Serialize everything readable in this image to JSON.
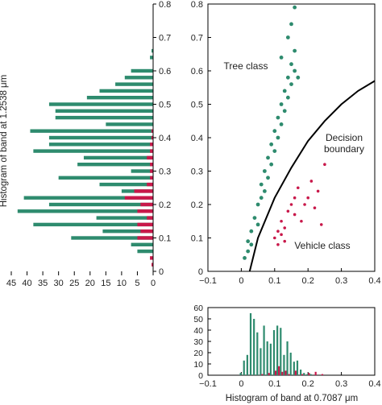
{
  "colors": {
    "tree": "#2e8b6e",
    "vehicle": "#c8184a",
    "boundary": "#000000"
  },
  "chart_data": [
    {
      "type": "bar",
      "orientation": "horizontal",
      "ylabel": "Histogram of band at 1.2538 μm",
      "ylim": [
        0,
        0.8
      ],
      "xlim": [
        45,
        0
      ],
      "xticks": [
        "45",
        "40",
        "35",
        "30",
        "25",
        "20",
        "15",
        "10",
        "5",
        "0"
      ],
      "yticks": [
        "0",
        "0.1",
        "0.2",
        "0.3",
        "0.4",
        "0.5",
        "0.6",
        "0.7",
        "0.8"
      ],
      "grid": false,
      "series": [
        {
          "color": "tree",
          "y": [
            0.06,
            0.08,
            0.1,
            0.12,
            0.14,
            0.16,
            0.18,
            0.2,
            0.22,
            0.24,
            0.26,
            0.28,
            0.3,
            0.32,
            0.34,
            0.36,
            0.38,
            0.4,
            0.42,
            0.44,
            0.46,
            0.48,
            0.5,
            0.52,
            0.54,
            0.56,
            0.58,
            0.6,
            0.62,
            0.64,
            0.66
          ],
          "values": [
            5,
            7,
            26,
            16,
            38,
            18,
            43,
            33,
            41,
            10,
            17,
            30,
            7,
            24,
            22,
            38,
            33,
            33,
            39,
            15,
            31,
            31,
            33,
            21,
            17,
            12,
            9,
            7,
            0,
            1,
            0.5
          ]
        },
        {
          "color": "vehicle",
          "y": [
            0.02,
            0.04,
            0.06,
            0.08,
            0.1,
            0.12,
            0.14,
            0.16,
            0.18,
            0.2,
            0.22,
            0.24,
            0.26,
            0.28,
            0.3,
            0.32,
            0.34,
            0.36,
            0.38,
            0.4,
            0.42
          ],
          "values": [
            0.5,
            1,
            0,
            0,
            5,
            4,
            5,
            2,
            5,
            4,
            9,
            6,
            2,
            1,
            1,
            1,
            2,
            1,
            1,
            0.5,
            0.5
          ]
        }
      ]
    },
    {
      "type": "scatter",
      "xlim": [
        -0.1,
        0.4
      ],
      "ylim": [
        0,
        0.8
      ],
      "xticks": [
        "−0.1",
        "0",
        "0.1",
        "0.2",
        "0.3",
        "0.4"
      ],
      "yticks": [
        "0",
        "0.1",
        "0.2",
        "0.3",
        "0.4",
        "0.5",
        "0.6",
        "0.7",
        "0.8"
      ],
      "grid": false,
      "annotations": [
        "Tree class",
        "Decision",
        "boundary",
        "Vehicle class"
      ],
      "series": [
        {
          "name": "Tree class",
          "color": "tree",
          "points": [
            [
              0.01,
              0.04
            ],
            [
              0.02,
              0.06
            ],
            [
              0.02,
              0.09
            ],
            [
              0.03,
              0.08
            ],
            [
              0.03,
              0.12
            ],
            [
              0.04,
              0.16
            ],
            [
              0.05,
              0.14
            ],
            [
              0.05,
              0.2
            ],
            [
              0.06,
              0.22
            ],
            [
              0.06,
              0.26
            ],
            [
              0.07,
              0.24
            ],
            [
              0.07,
              0.3
            ],
            [
              0.08,
              0.28
            ],
            [
              0.08,
              0.34
            ],
            [
              0.09,
              0.32
            ],
            [
              0.09,
              0.38
            ],
            [
              0.1,
              0.36
            ],
            [
              0.1,
              0.42
            ],
            [
              0.11,
              0.4
            ],
            [
              0.11,
              0.46
            ],
            [
              0.12,
              0.44
            ],
            [
              0.12,
              0.5
            ],
            [
              0.13,
              0.48
            ],
            [
              0.13,
              0.54
            ],
            [
              0.14,
              0.52
            ],
            [
              0.14,
              0.58
            ],
            [
              0.15,
              0.56
            ],
            [
              0.15,
              0.62
            ],
            [
              0.16,
              0.6
            ],
            [
              0.16,
              0.66
            ],
            [
              0.17,
              0.58
            ],
            [
              0.12,
              0.64
            ],
            [
              0.14,
              0.7
            ],
            [
              0.15,
              0.74
            ],
            [
              0.16,
              0.79
            ]
          ]
        },
        {
          "name": "Vehicle class",
          "color": "vehicle",
          "points": [
            [
              0.1,
              0.1
            ],
            [
              0.11,
              0.12
            ],
            [
              0.12,
              0.15
            ],
            [
              0.13,
              0.13
            ],
            [
              0.12,
              0.11
            ],
            [
              0.14,
              0.18
            ],
            [
              0.15,
              0.2
            ],
            [
              0.16,
              0.22
            ],
            [
              0.17,
              0.25
            ],
            [
              0.16,
              0.17
            ],
            [
              0.18,
              0.15
            ],
            [
              0.19,
              0.2
            ],
            [
              0.2,
              0.22
            ],
            [
              0.21,
              0.27
            ],
            [
              0.22,
              0.19
            ],
            [
              0.23,
              0.24
            ],
            [
              0.25,
              0.32
            ],
            [
              0.24,
              0.14
            ],
            [
              0.13,
              0.09
            ],
            [
              0.11,
              0.08
            ]
          ]
        },
        {
          "name": "Decision boundary",
          "type": "line",
          "color": "boundary",
          "x": [
            0.025,
            0.05,
            0.1,
            0.15,
            0.2,
            0.25,
            0.3,
            0.35,
            0.4
          ],
          "y": [
            0.0,
            0.1,
            0.22,
            0.31,
            0.39,
            0.45,
            0.5,
            0.54,
            0.57
          ]
        }
      ]
    },
    {
      "type": "bar",
      "xlabel": "Histogram of band at 0.7087 μm",
      "xlim": [
        -0.1,
        0.4
      ],
      "ylim": [
        0,
        60
      ],
      "xticks": [
        "−0.1",
        "0",
        "0.1",
        "0.2",
        "0.3",
        "0.4"
      ],
      "yticks": [
        "0",
        "10",
        "20",
        "30",
        "40",
        "50",
        "60"
      ],
      "grid": false,
      "series": [
        {
          "color": "tree",
          "x": [
            0.0,
            0.01,
            0.02,
            0.03,
            0.04,
            0.05,
            0.06,
            0.07,
            0.08,
            0.09,
            0.1,
            0.11,
            0.12,
            0.13,
            0.14,
            0.15,
            0.16,
            0.17,
            0.18,
            0.19,
            0.2,
            0.21
          ],
          "values": [
            2,
            13,
            18,
            55,
            50,
            38,
            24,
            44,
            30,
            28,
            40,
            44,
            42,
            18,
            30,
            20,
            12,
            13,
            5,
            2,
            1,
            1
          ]
        },
        {
          "color": "vehicle",
          "x": [
            0.06,
            0.08,
            0.1,
            0.11,
            0.12,
            0.13,
            0.14,
            0.16,
            0.18,
            0.2,
            0.22,
            0.24
          ],
          "values": [
            1,
            2,
            4,
            8,
            3,
            4,
            1,
            4,
            1,
            2,
            3,
            1
          ]
        }
      ]
    }
  ]
}
